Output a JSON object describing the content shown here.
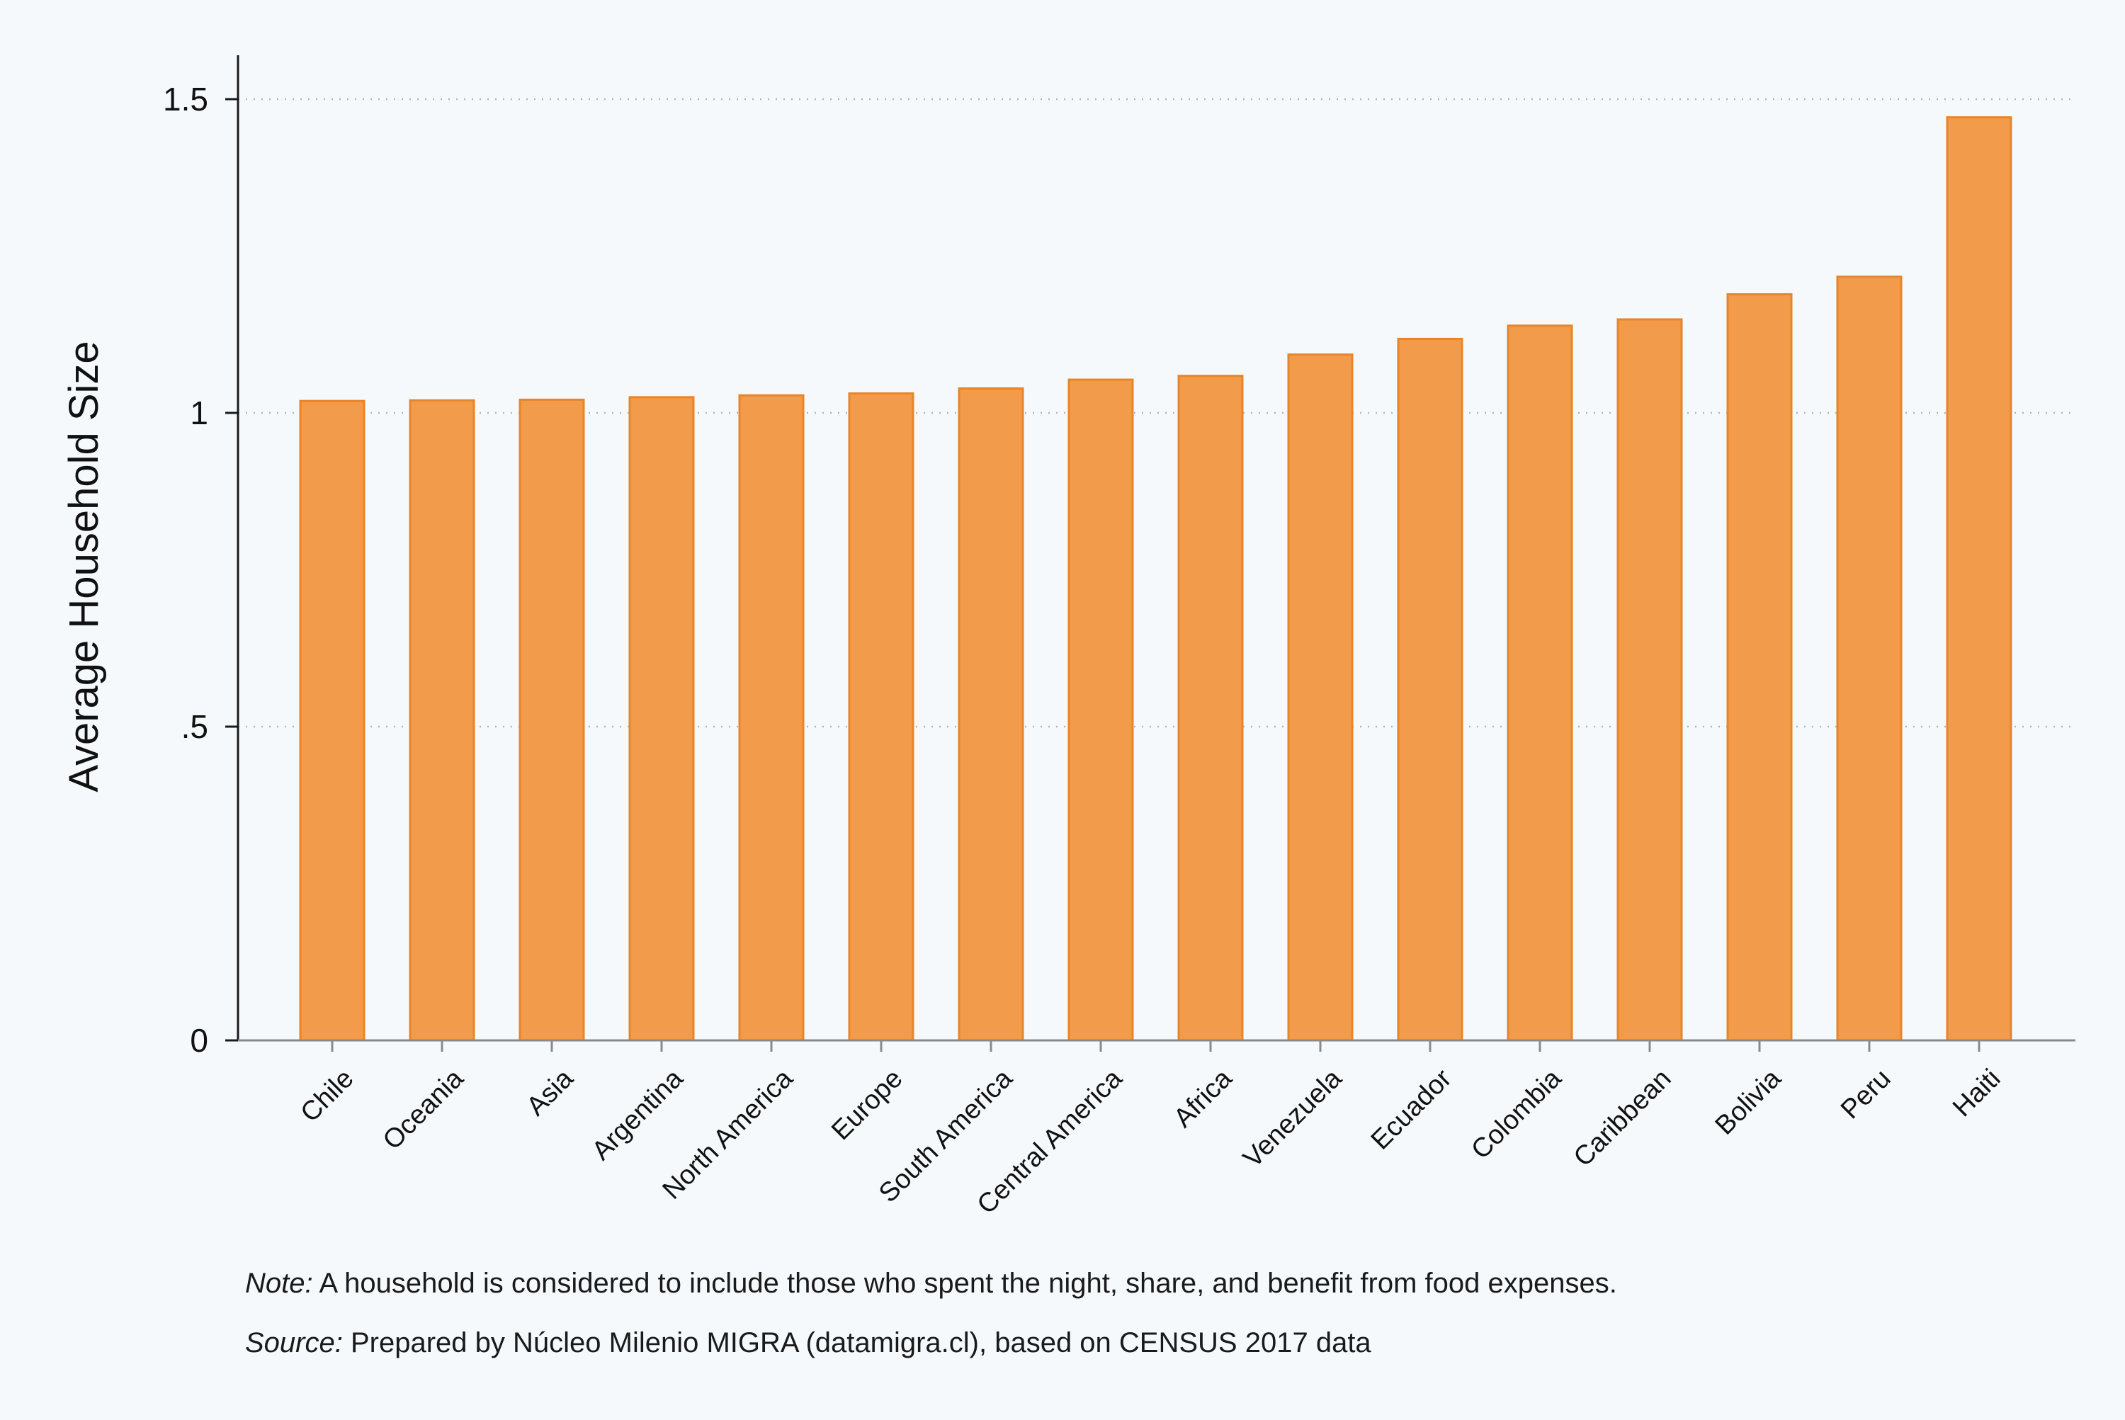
{
  "chart_data": {
    "type": "bar",
    "categories": [
      "Chile",
      "Oceania",
      "Asia",
      "Argentina",
      "North America",
      "Europe",
      "South America",
      "Central America",
      "Africa",
      "Venezuela",
      "Ecuador",
      "Colombia",
      "Caribbean",
      "Bolivia",
      "Peru",
      "Haiti"
    ],
    "values": [
      1.019,
      1.02,
      1.021,
      1.025,
      1.028,
      1.031,
      1.039,
      1.053,
      1.059,
      1.093,
      1.118,
      1.139,
      1.149,
      1.189,
      1.217,
      1.471
    ],
    "title": "",
    "xlabel": "",
    "ylabel": "Average Household Size",
    "ylim": [
      0,
      1.57
    ],
    "yticks": [
      0,
      0.5,
      1,
      1.5
    ],
    "ytick_labels": [
      "0",
      ".5",
      "1",
      "1.5"
    ],
    "grid": true,
    "bar_color": "#f29b4a",
    "bar_edge_color": "#e8852a"
  },
  "notes": {
    "note_label": "Note:",
    "note_text": " A household is considered to include those who spent the night, share, and benefit from food expenses.",
    "source_label": "Source:",
    "source_text": " Prepared by Núcleo Milenio MIGRA (datamigra.cl), based on CENSUS 2017 data"
  }
}
